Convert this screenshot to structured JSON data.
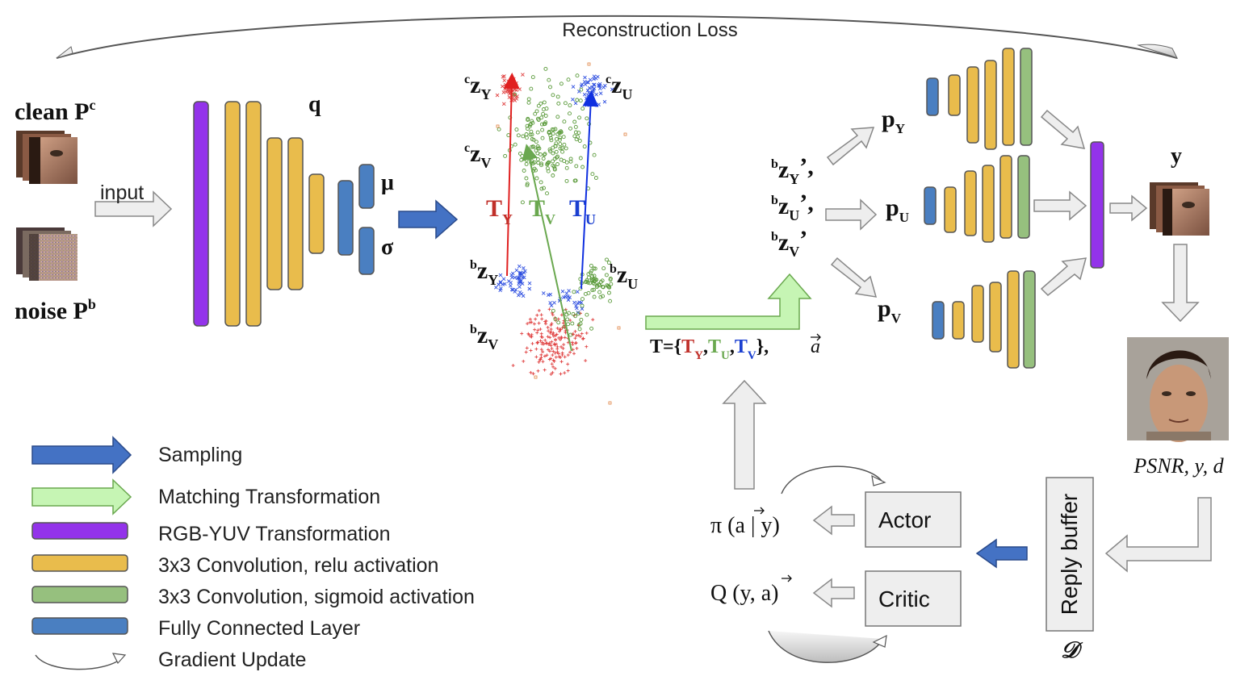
{
  "title_loss": "Reconstruction Loss",
  "input": {
    "clean": {
      "word": "clean",
      "symbol": "P",
      "sup": "c"
    },
    "noise": {
      "word": "noise",
      "symbol": "P",
      "sup": "b"
    },
    "arrow_label": "input"
  },
  "encoder": {
    "name": "q",
    "mu": "μ",
    "sigma": "σ"
  },
  "latent": {
    "cZY": {
      "sup": "c",
      "base": "z",
      "sub": "Y"
    },
    "cZU": {
      "sup": "c",
      "base": "z",
      "sub": "U"
    },
    "cZV": {
      "sup": "c",
      "base": "z",
      "sub": "V"
    },
    "bZY": {
      "sup": "b",
      "base": "z",
      "sub": "Y"
    },
    "bZU": {
      "sup": "b",
      "base": "z",
      "sub": "U"
    },
    "bZV": {
      "sup": "b",
      "base": "z",
      "sub": "V"
    },
    "TY": {
      "base": "T",
      "sub": "Y"
    },
    "TV": {
      "base": "T",
      "sub": "V"
    },
    "TU": {
      "base": "T",
      "sub": "U"
    }
  },
  "transform_set": {
    "prefix": "T={",
    "items": [
      {
        "base": "T",
        "sub": "Y"
      },
      {
        "base": "T",
        "sub": "U"
      },
      {
        "base": "T",
        "sub": "V"
      }
    ],
    "suffix": "},",
    "action": "a"
  },
  "transformed": [
    {
      "sup": "b",
      "base": "z",
      "sub": "Y",
      "prime": "’,"
    },
    {
      "sup": "b",
      "base": "z",
      "sub": "U",
      "prime": "’,"
    },
    {
      "sup": "b",
      "base": "z",
      "sub": "V",
      "prime": "’"
    }
  ],
  "decoders": [
    {
      "base": "p",
      "sub": "Y"
    },
    {
      "base": "p",
      "sub": "U"
    },
    {
      "base": "p",
      "sub": "V"
    }
  ],
  "output": {
    "label": "y",
    "metrics": "PSNR, y, d"
  },
  "rl": {
    "policy": {
      "text": "π (a | y)"
    },
    "qvalue": {
      "text": "Q (y, a)"
    },
    "actor": "Actor",
    "critic": "Critic",
    "buffer": "Reply buffer",
    "buffer_symbol": "𝒟"
  },
  "legend": [
    {
      "label": "Sampling",
      "kind": "blue-arrow"
    },
    {
      "label": "Matching Transformation",
      "kind": "green-arrow"
    },
    {
      "label": "RGB-YUV Transformation",
      "kind": "purple-bar"
    },
    {
      "label": "3x3 Convolution, relu activation",
      "kind": "yellow-bar"
    },
    {
      "label": "3x3 Convolution, sigmoid activation",
      "kind": "green-bar"
    },
    {
      "label": "Fully Connected Layer",
      "kind": "blue-bar"
    },
    {
      "label": "Gradient Update",
      "kind": "curved-arrow"
    }
  ],
  "colors": {
    "purple": "#9333EA",
    "yellow": "#E9BC4C",
    "green": "#96C07E",
    "blue": "#4A7FC1",
    "sample_arrow": "#4472C4",
    "match_arrow": "#C6F5B4",
    "gray_arrow": "#EEEEEE",
    "red": "#C0302A",
    "tgreen": "#6AA84F",
    "tblue": "#1A3FD0"
  }
}
